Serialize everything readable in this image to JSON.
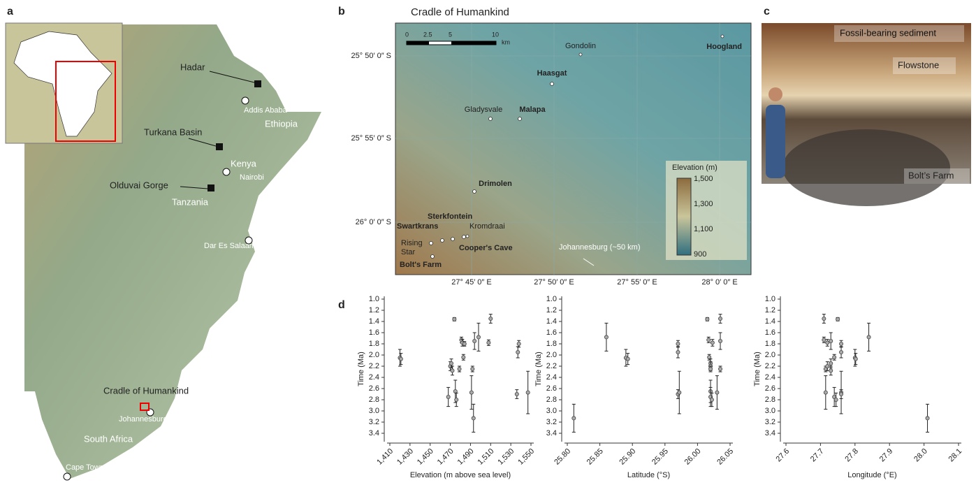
{
  "panels": {
    "a": {
      "label": "a",
      "places": [
        "Hadar",
        "Addis Ababa",
        "Ethiopia",
        "Turkana Basin",
        "Kenya",
        "Nairobi",
        "Olduvai Gorge",
        "Tanzania",
        "Dar Es Salaam",
        "Cradle of Humankind",
        "Johannesburg",
        "South Africa",
        "Cape Town"
      ]
    },
    "b": {
      "label": "b",
      "title": "Cradle of Humankind",
      "scale": [
        "0",
        "2.5",
        "5",
        "10",
        "km"
      ],
      "lat_labels": [
        "25° 50′ 0″ S",
        "25° 55′ 0″ S",
        "26° 0′ 0″ S"
      ],
      "lon_labels": [
        "27° 45′ 0″ E",
        "27° 50′ 0″ E",
        "27° 55′ 0″ E",
        "28° 0′ 0″ E"
      ],
      "sites": [
        "Gondolin",
        "Hoogland",
        "Haasgat",
        "Gladysvale",
        "Malapa",
        "Drimolen",
        "Sterkfontein",
        "Swartkrans",
        "Kromdraai",
        "Rising",
        "Star",
        "Cooper's Cave",
        "Bolt's Farm"
      ],
      "direction": "Johannesburg (~50 km)",
      "legend_title": "Elevation (m)",
      "legend_ticks": [
        "1,500",
        "1,300",
        "1,100",
        "900"
      ]
    },
    "c": {
      "label": "c",
      "annotations": [
        "Fossil-bearing sediment",
        "Flowstone",
        "Bolt’s Farm"
      ]
    },
    "d": {
      "label": "d"
    }
  },
  "chart_data": [
    {
      "type": "scatter",
      "xlabel": "Elevation (m above sea level)",
      "ylabel": "Time (Ma)",
      "y_reversed": true,
      "xlim": [
        1410,
        1550
      ],
      "ylim": [
        1.0,
        3.5
      ],
      "xticks": [
        {
          "value": 1410,
          "label": "1,410"
        },
        {
          "value": 1430,
          "label": "1,430"
        },
        {
          "value": 1450,
          "label": "1,450"
        },
        {
          "value": 1470,
          "label": "1,470"
        },
        {
          "value": 1490,
          "label": "1,490"
        },
        {
          "value": 1510,
          "label": "1,510"
        },
        {
          "value": 1530,
          "label": "1,530"
        },
        {
          "value": 1550,
          "label": "1,550"
        }
      ],
      "yticks": [
        {
          "value": 1,
          "label": "1.0"
        },
        1.2,
        1.4,
        1.6,
        1.8,
        {
          "value": 2,
          "label": "2.0"
        },
        2.2,
        2.4,
        2.6,
        2.8,
        {
          "value": 3,
          "label": "3.0"
        },
        3.2,
        3.4
      ],
      "x": [
        1420,
        1421,
        1468,
        1470,
        1471,
        1472,
        1474,
        1475,
        1476,
        1479,
        1481,
        1482,
        1483,
        1484,
        1491,
        1492,
        1493,
        1494,
        1498,
        1508,
        1510,
        1536,
        1537,
        1538,
        1547
      ],
      "values": [
        2.05,
        2.07,
        2.75,
        2.2,
        2.15,
        2.28,
        1.36,
        2.65,
        2.8,
        2.25,
        1.73,
        1.78,
        2.04,
        1.8,
        2.67,
        2.25,
        3.13,
        1.75,
        1.68,
        1.78,
        1.35,
        2.7,
        1.95,
        1.8,
        2.67
      ],
      "errors": [
        0.15,
        0.1,
        0.17,
        0.08,
        0.08,
        0.08,
        0.03,
        0.2,
        0.12,
        0.05,
        0.05,
        0.06,
        0.05,
        0.04,
        0.3,
        0.05,
        0.25,
        0.15,
        0.25,
        0.05,
        0.08,
        0.08,
        0.1,
        0.06,
        0.38
      ]
    },
    {
      "type": "scatter",
      "xlabel": "Latitude (°S)",
      "ylabel": "Time (Ma)",
      "y_reversed": true,
      "xlim": [
        25.8,
        26.05
      ],
      "ylim": [
        1.0,
        3.5
      ],
      "xticks": [
        {
          "value": 25.8,
          "label": "25.80"
        },
        25.85,
        {
          "value": 25.9,
          "label": "25.90"
        },
        25.95,
        {
          "value": 26,
          "label": "26.00"
        },
        26.05
      ],
      "yticks": [
        {
          "value": 1,
          "label": "1.0"
        },
        1.2,
        1.4,
        1.6,
        1.8,
        {
          "value": 2,
          "label": "2.0"
        },
        2.2,
        2.4,
        2.6,
        2.8,
        {
          "value": 3,
          "label": "3.0"
        },
        3.2,
        3.4
      ],
      "x": [
        25.81,
        25.86,
        25.89,
        25.893,
        25.97,
        25.97,
        25.97,
        25.972,
        26.015,
        26.017,
        26.018,
        26.02,
        26.02,
        26.02,
        26.02,
        26.02,
        26.022,
        26.023,
        26.03,
        26.035,
        26.035,
        26.035
      ],
      "values": [
        3.13,
        1.68,
        2.05,
        2.07,
        1.8,
        1.95,
        2.7,
        2.67,
        1.36,
        1.73,
        2.04,
        2.15,
        2.2,
        2.25,
        2.65,
        2.75,
        2.8,
        1.78,
        2.67,
        1.35,
        1.75,
        2.25
      ],
      "errors": [
        0.25,
        0.25,
        0.15,
        0.1,
        0.06,
        0.1,
        0.08,
        0.38,
        0.03,
        0.05,
        0.05,
        0.08,
        0.08,
        0.05,
        0.2,
        0.17,
        0.12,
        0.06,
        0.3,
        0.08,
        0.15,
        0.05
      ]
    },
    {
      "type": "scatter",
      "xlabel": "Longitude (°E)",
      "ylabel": "Time (Ma)",
      "y_reversed": true,
      "xlim": [
        27.6,
        28.1
      ],
      "ylim": [
        1.0,
        3.5
      ],
      "xticks": [
        27.6,
        27.7,
        27.8,
        27.9,
        {
          "value": 28,
          "label": "28.0"
        },
        28.1
      ],
      "yticks": [
        {
          "value": 1,
          "label": "1.0"
        },
        1.2,
        1.4,
        1.6,
        1.8,
        {
          "value": 2,
          "label": "2.0"
        },
        2.2,
        2.4,
        2.6,
        2.8,
        {
          "value": 3,
          "label": "3.0"
        },
        3.2,
        3.4
      ],
      "x": [
        27.71,
        27.71,
        27.715,
        27.715,
        27.72,
        27.72,
        27.73,
        27.73,
        27.73,
        27.74,
        27.74,
        27.745,
        27.75,
        27.76,
        27.76,
        27.76,
        27.76,
        27.8,
        27.802,
        27.84,
        28.01
      ],
      "values": [
        1.35,
        1.73,
        2.25,
        2.67,
        1.78,
        2.2,
        1.75,
        2.15,
        2.28,
        2.04,
        2.75,
        2.8,
        1.36,
        1.8,
        1.95,
        2.67,
        2.7,
        2.05,
        2.07,
        1.68,
        3.13
      ],
      "errors": [
        0.08,
        0.05,
        0.05,
        0.3,
        0.06,
        0.08,
        0.15,
        0.08,
        0.08,
        0.05,
        0.17,
        0.12,
        0.03,
        0.06,
        0.1,
        0.38,
        0.08,
        0.15,
        0.1,
        0.25,
        0.25
      ]
    }
  ]
}
